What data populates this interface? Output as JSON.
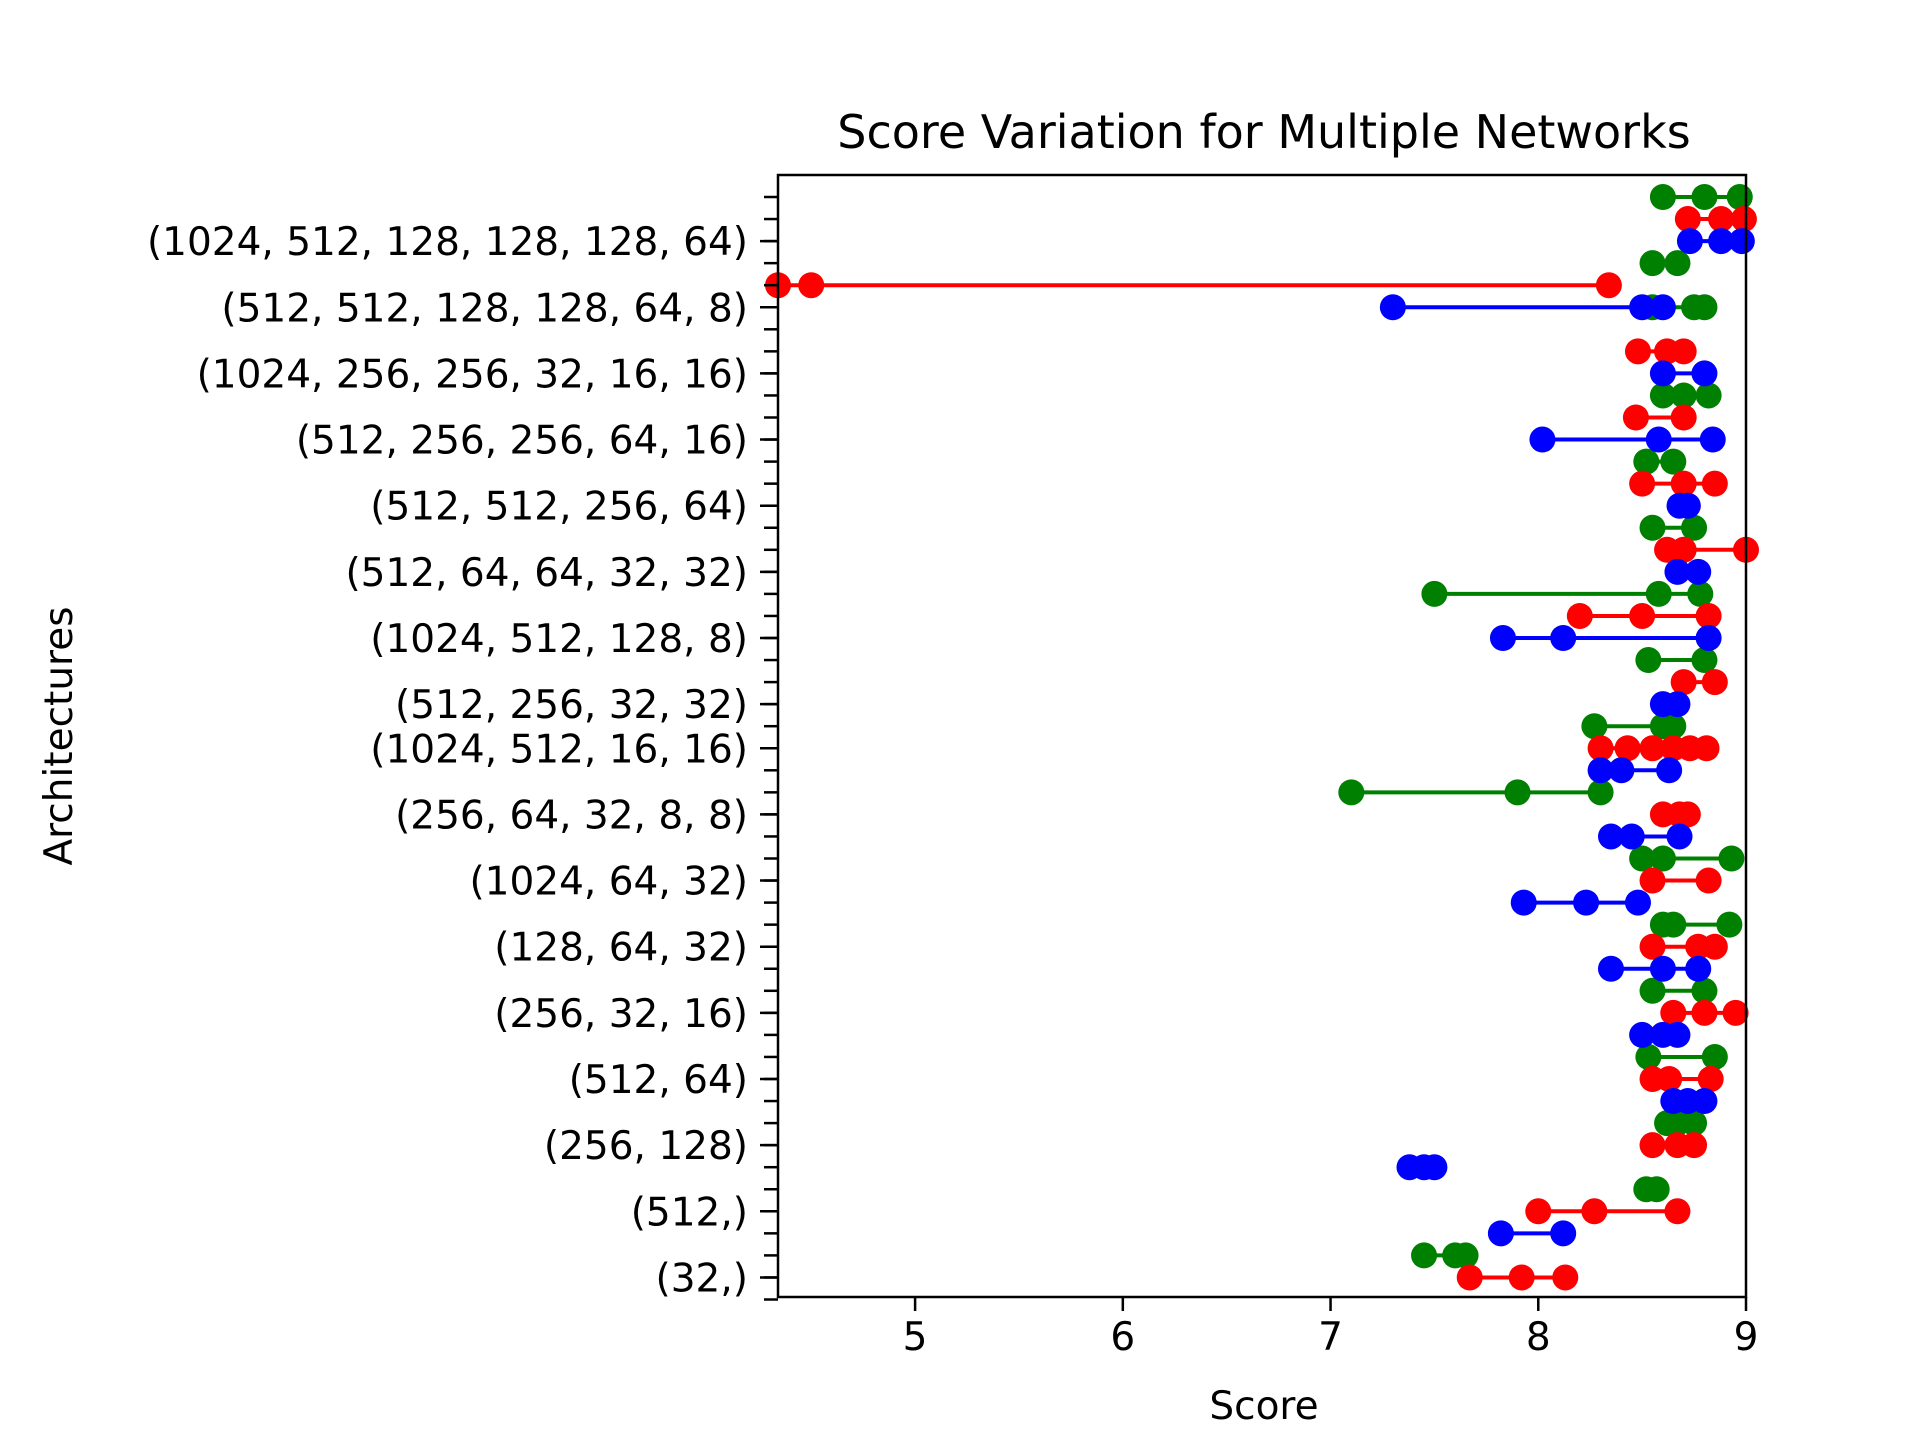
{
  "chart_data": {
    "type": "scatter",
    "title": "Score Variation for Multiple Networks",
    "xlabel": "Score",
    "ylabel": "Architectures",
    "xlim": [
      4.34,
      9.0
    ],
    "x_ticks": [
      5,
      6,
      7,
      8,
      9
    ],
    "x_tick_labels": [
      "5",
      "6",
      "7",
      "8",
      "9"
    ],
    "categories": [
      "(1024, 512, 128, 128, 128, 64)",
      "(512, 512, 128, 128, 64, 8)",
      "(1024, 256, 256, 32, 16, 16)",
      "(512, 256, 256, 64, 16)",
      "(512, 512, 256, 64)",
      "(512, 64, 64, 32, 32)",
      "(1024, 512, 128, 8)",
      "(512, 256, 32, 32)",
      "(1024, 512, 16, 16)",
      "(256, 64, 32, 8, 8)",
      "(1024, 64, 32)",
      "(128, 64, 32)",
      "(256, 32, 16)",
      "(512, 64)",
      "(256, 128)",
      "(512,)",
      "(32,)"
    ],
    "row_count": 51,
    "series": [
      {
        "color": "#008000",
        "rows": [
          {
            "row": 0,
            "values": [
              8.6,
              8.8,
              8.97
            ]
          },
          {
            "row": 3,
            "values": [
              8.55,
              8.67
            ]
          },
          {
            "row": 5,
            "values": [
              8.55,
              8.75,
              8.8
            ]
          },
          {
            "row": 9,
            "values": [
              8.6,
              8.7,
              8.82
            ]
          },
          {
            "row": 12,
            "values": [
              8.52,
              8.65
            ]
          },
          {
            "row": 15,
            "values": [
              8.55,
              8.75
            ]
          },
          {
            "row": 18,
            "values": [
              7.5,
              8.58,
              8.78
            ]
          },
          {
            "row": 21,
            "values": [
              8.53,
              8.8
            ]
          },
          {
            "row": 24,
            "values": [
              8.27,
              8.6,
              8.65
            ]
          },
          {
            "row": 27,
            "values": [
              7.1,
              7.9,
              8.3
            ]
          },
          {
            "row": 30,
            "values": [
              8.5,
              8.6,
              8.93
            ]
          },
          {
            "row": 33,
            "values": [
              8.6,
              8.65,
              8.92
            ]
          },
          {
            "row": 36,
            "values": [
              8.55,
              8.8
            ]
          },
          {
            "row": 39,
            "values": [
              8.53,
              8.85
            ]
          },
          {
            "row": 42,
            "values": [
              8.62,
              8.67,
              8.75
            ]
          },
          {
            "row": 45,
            "values": [
              8.52,
              8.57
            ]
          },
          {
            "row": 48,
            "values": [
              7.45,
              7.6,
              7.65
            ]
          }
        ]
      },
      {
        "color": "#ff0000",
        "rows": [
          {
            "row": 1,
            "values": [
              8.72,
              8.88,
              8.99
            ]
          },
          {
            "row": 4,
            "values": [
              4.34,
              4.5,
              8.34
            ]
          },
          {
            "row": 7,
            "values": [
              8.48,
              8.62,
              8.7
            ]
          },
          {
            "row": 10,
            "values": [
              8.47,
              8.7
            ]
          },
          {
            "row": 13,
            "values": [
              8.5,
              8.7,
              8.85
            ]
          },
          {
            "row": 16,
            "values": [
              8.62,
              8.7,
              9.0
            ]
          },
          {
            "row": 19,
            "values": [
              8.2,
              8.5,
              8.82
            ]
          },
          {
            "row": 22,
            "values": [
              8.7,
              8.85
            ]
          },
          {
            "row": 25,
            "values": [
              8.3,
              8.43,
              8.55,
              8.65,
              8.73,
              8.81
            ]
          },
          {
            "row": 28,
            "values": [
              8.6,
              8.68,
              8.72
            ]
          },
          {
            "row": 31,
            "values": [
              8.55,
              8.82
            ]
          },
          {
            "row": 34,
            "values": [
              8.55,
              8.77,
              8.85
            ]
          },
          {
            "row": 37,
            "values": [
              8.65,
              8.8,
              8.95
            ]
          },
          {
            "row": 40,
            "values": [
              8.55,
              8.63,
              8.83
            ]
          },
          {
            "row": 43,
            "values": [
              8.55,
              8.67,
              8.75
            ]
          },
          {
            "row": 46,
            "values": [
              8.0,
              8.27,
              8.67
            ]
          },
          {
            "row": 49,
            "values": [
              7.67,
              7.92,
              8.13
            ]
          }
        ]
      },
      {
        "color": "#0000ff",
        "rows": [
          {
            "row": 2,
            "values": [
              8.73,
              8.88,
              8.98
            ]
          },
          {
            "row": 5,
            "values": [
              7.3,
              8.5,
              8.6
            ]
          },
          {
            "row": 8,
            "values": [
              8.6,
              8.8
            ]
          },
          {
            "row": 11,
            "values": [
              8.02,
              8.58,
              8.84
            ]
          },
          {
            "row": 14,
            "values": [
              8.68,
              8.72
            ]
          },
          {
            "row": 17,
            "values": [
              8.67,
              8.77
            ]
          },
          {
            "row": 20,
            "values": [
              7.83,
              8.12,
              8.82
            ]
          },
          {
            "row": 23,
            "values": [
              8.6,
              8.67
            ]
          },
          {
            "row": 26,
            "values": [
              8.3,
              8.4,
              8.63
            ]
          },
          {
            "row": 29,
            "values": [
              8.35,
              8.45,
              8.68
            ]
          },
          {
            "row": 32,
            "values": [
              7.93,
              8.23,
              8.48
            ]
          },
          {
            "row": 35,
            "values": [
              8.35,
              8.6,
              8.77
            ]
          },
          {
            "row": 38,
            "values": [
              8.5,
              8.6,
              8.67
            ]
          },
          {
            "row": 41,
            "values": [
              8.65,
              8.72,
              8.8
            ]
          },
          {
            "row": 44,
            "values": [
              7.38,
              7.45,
              7.5
            ]
          },
          {
            "row": 47,
            "values": [
              7.82,
              8.12
            ]
          }
        ]
      }
    ],
    "grid": false,
    "legend": "none"
  }
}
